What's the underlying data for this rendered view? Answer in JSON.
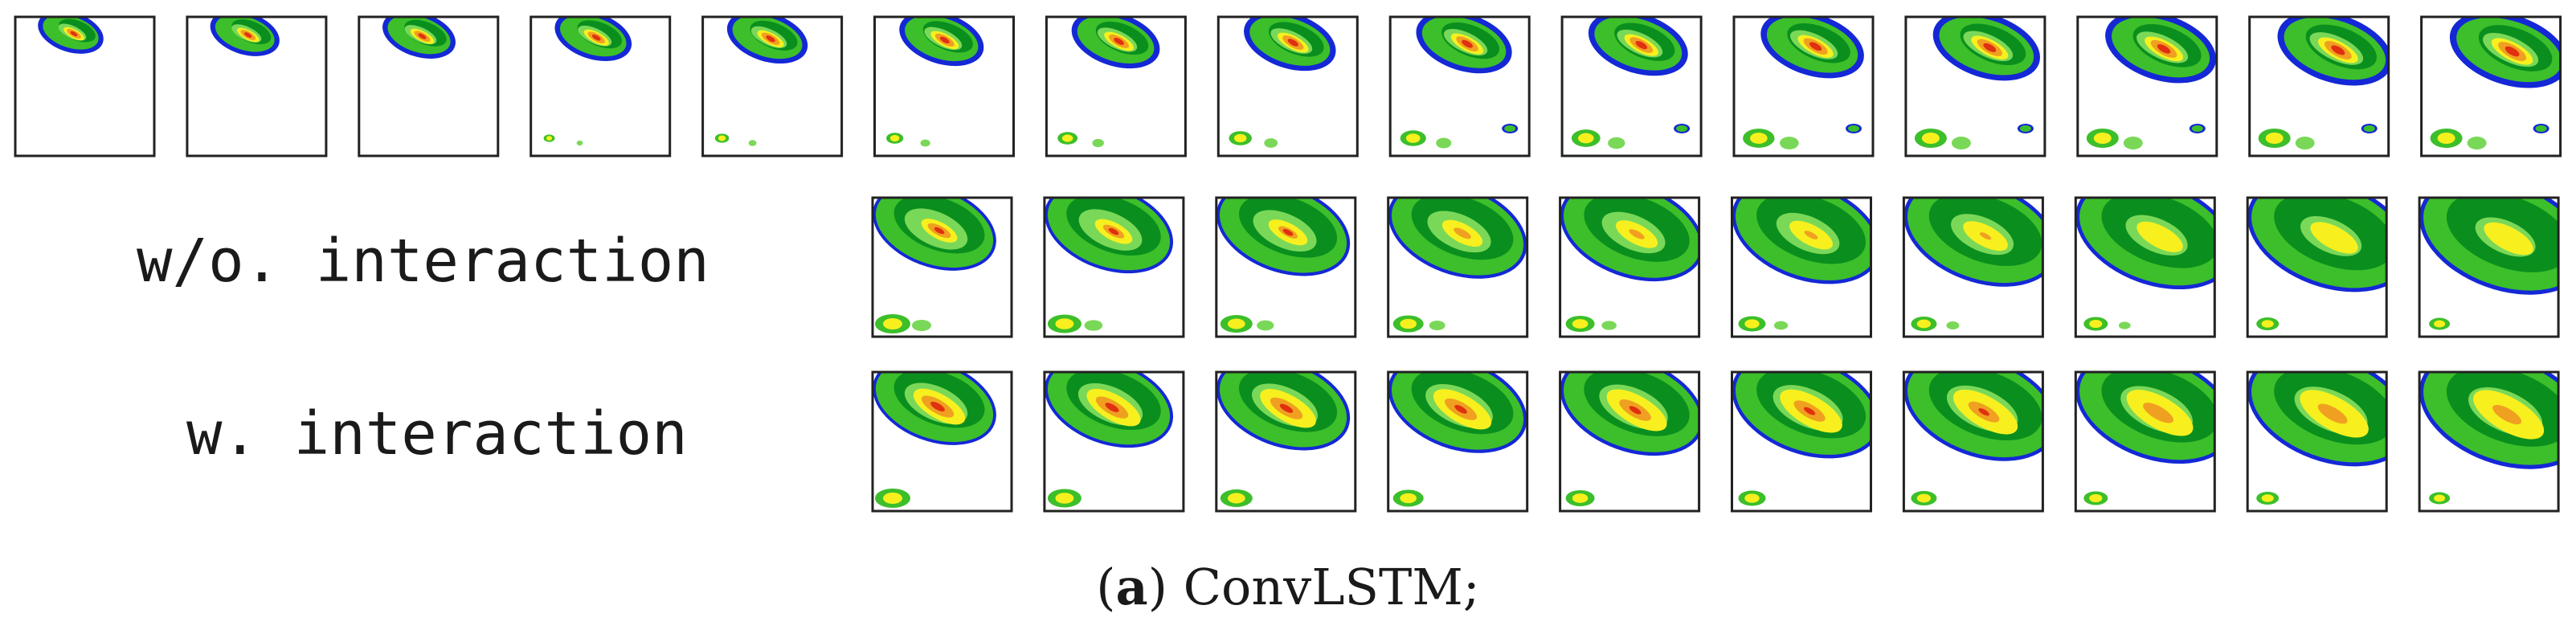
{
  "figure": {
    "rows": [
      {
        "id": "ground-truth",
        "label": "",
        "frame_count": 15
      },
      {
        "id": "without-interaction",
        "label": "w/o. interaction",
        "frame_count": 10
      },
      {
        "id": "with-interaction",
        "label": "w. interaction",
        "frame_count": 10
      }
    ],
    "caption": {
      "paren_open": "(",
      "letter": "a",
      "paren_close": ")",
      "text": " ConvLSTM;"
    }
  },
  "colors": {
    "background": "#ffffff",
    "frame_border": "#222222",
    "radar_levels": [
      "#1428d6",
      "#0a8f1e",
      "#3cbf2a",
      "#7ad858",
      "#f7f01e",
      "#f0a020",
      "#e03010"
    ]
  }
}
